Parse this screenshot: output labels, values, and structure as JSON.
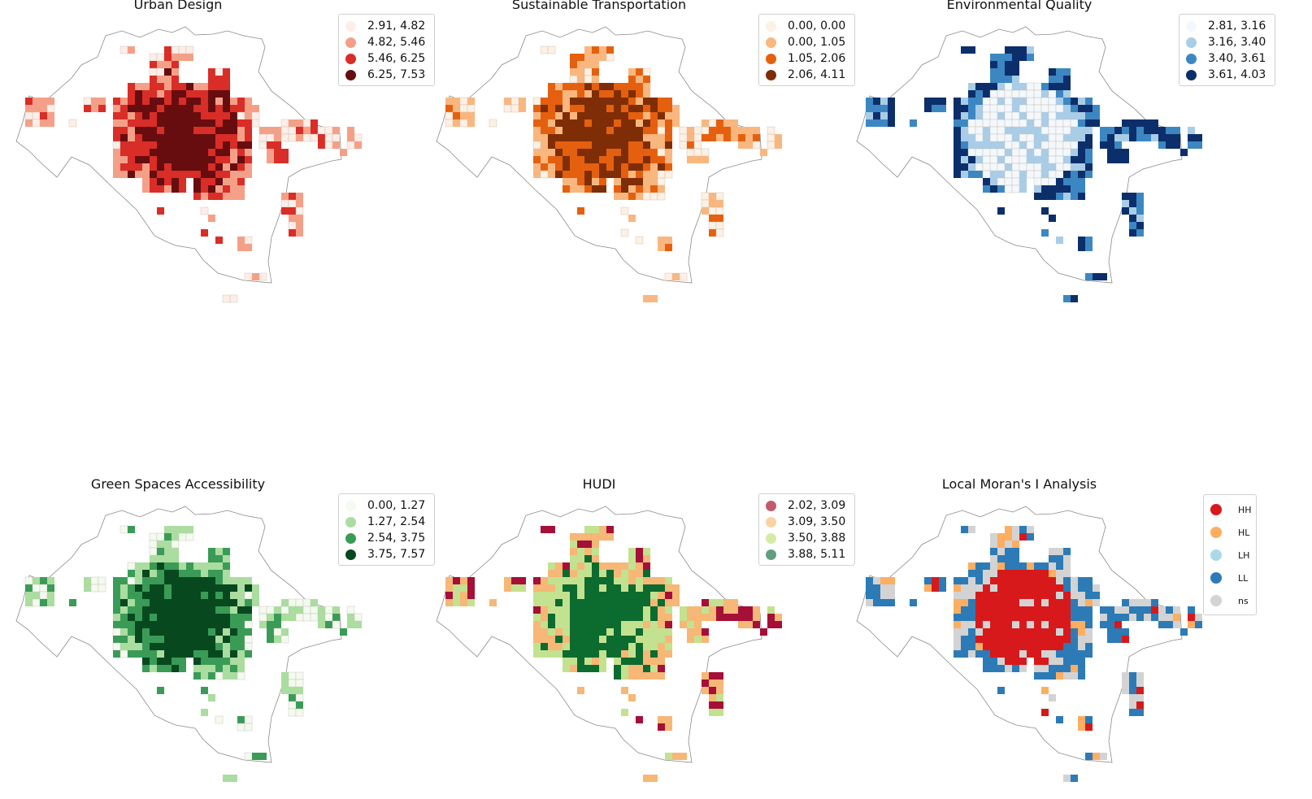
{
  "panels": [
    {
      "id": "urban-design",
      "title": "Urban Design",
      "legend": [
        {
          "label": "2.91, 4.82",
          "color": "#fdeee8"
        },
        {
          "label": "4.82, 5.46",
          "color": "#f4a088"
        },
        {
          "label": "5.46, 6.25",
          "color": "#d92d27"
        },
        {
          "label": "6.25, 7.53",
          "color": "#670d10"
        }
      ]
    },
    {
      "id": "sustainable-transportation",
      "title": "Sustainable Transportation",
      "legend": [
        {
          "label": "0.00, 0.00",
          "color": "#fdf0e4"
        },
        {
          "label": "0.00, 1.05",
          "color": "#f9b77f"
        },
        {
          "label": "1.05, 2.06",
          "color": "#e5600e"
        },
        {
          "label": "2.06, 4.11",
          "color": "#7f2d06"
        }
      ]
    },
    {
      "id": "environmental-quality",
      "title": "Environmental Quality",
      "legend": [
        {
          "label": "2.81, 3.16",
          "color": "#f3f8fd"
        },
        {
          "label": "3.16, 3.40",
          "color": "#a9cde6"
        },
        {
          "label": "3.40, 3.61",
          "color": "#3c87c2"
        },
        {
          "label": "3.61, 4.03",
          "color": "#0c2f6b"
        }
      ]
    },
    {
      "id": "green-spaces-accessibility",
      "title": "Green Spaces Accessibility",
      "legend": [
        {
          "label": "0.00, 1.27",
          "color": "#f3fbf0"
        },
        {
          "label": "1.27, 2.54",
          "color": "#aadd9f"
        },
        {
          "label": "2.54, 3.75",
          "color": "#3a9b57"
        },
        {
          "label": "3.75, 7.57",
          "color": "#08481f"
        }
      ]
    },
    {
      "id": "hudi",
      "title": "HUDI",
      "legend": [
        {
          "label": "2.02, 3.09",
          "color": "#c3596c"
        },
        {
          "label": "3.09, 3.50",
          "color": "#fbd2a3"
        },
        {
          "label": "3.50, 3.88",
          "color": "#d6eba6"
        },
        {
          "label": "3.88, 5.11",
          "color": "#619e7e"
        }
      ],
      "palette": [
        "#a50f38",
        "#f6b777",
        "#c3e28f",
        "#0c6b2f"
      ]
    },
    {
      "id": "local-morans-i",
      "title": "Local Moran's I Analysis",
      "legend": [
        {
          "label": "HH",
          "color": "#d7191c"
        },
        {
          "label": "HL",
          "color": "#fdae61"
        },
        {
          "label": "LH",
          "color": "#abd9e9"
        },
        {
          "label": "LL",
          "color": "#2c7bb6"
        },
        {
          "label": "ns",
          "color": "#d3d3d3"
        }
      ]
    }
  ]
}
